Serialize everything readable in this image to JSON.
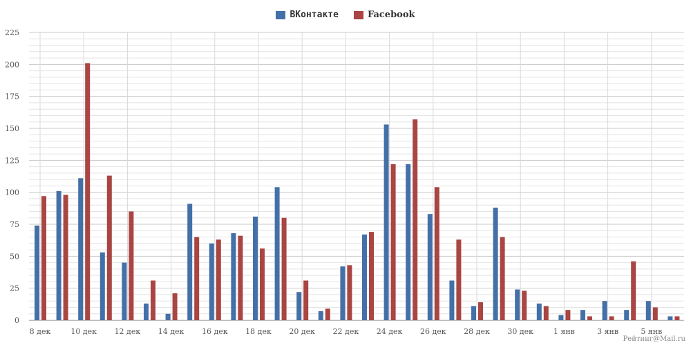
{
  "chart_data": {
    "type": "bar",
    "categories": [
      "8 дек",
      "9 дек",
      "10 дек",
      "11 дек",
      "12 дек",
      "13 дек",
      "14 дек",
      "15 дек",
      "16 дек",
      "17 дек",
      "18 дек",
      "19 дек",
      "20 дек",
      "21 дек",
      "22 дек",
      "23 дек",
      "24 дек",
      "25 дек",
      "26 дек",
      "27 дек",
      "28 дек",
      "29 дек",
      "30 дек",
      "31 дек",
      "1 янв",
      "2 янв",
      "3 янв",
      "4 янв",
      "5 янв",
      "6 янв"
    ],
    "x_tick_labels": [
      "8 дек",
      "10 дек",
      "12 дек",
      "14 дек",
      "16 дек",
      "18 дек",
      "20 дек",
      "22 дек",
      "24 дек",
      "26 дек",
      "28 дек",
      "30 дек",
      "1 янв",
      "3 янв",
      "5 янв"
    ],
    "series": [
      {
        "name": "ВКонтакте",
        "color": "#4470a8",
        "values": [
          74,
          101,
          111,
          53,
          45,
          13,
          5,
          91,
          60,
          68,
          81,
          104,
          22,
          7,
          42,
          67,
          153,
          122,
          83,
          31,
          11,
          88,
          24,
          13,
          4,
          8,
          15,
          8,
          15,
          3
        ]
      },
      {
        "name": "Facebook",
        "color": "#a94542",
        "values": [
          97,
          98,
          201,
          113,
          85,
          31,
          21,
          65,
          63,
          66,
          56,
          80,
          31,
          9,
          43,
          69,
          122,
          157,
          104,
          63,
          14,
          65,
          23,
          11,
          8,
          3,
          3,
          46,
          10,
          3
        ]
      }
    ],
    "ylim": [
      0,
      225
    ],
    "y_ticks": [
      0,
      25,
      50,
      75,
      100,
      125,
      150,
      175,
      200,
      225
    ],
    "grid": true,
    "legend_position": "top-center"
  },
  "watermark": "Рейтинг@Mail.ru"
}
